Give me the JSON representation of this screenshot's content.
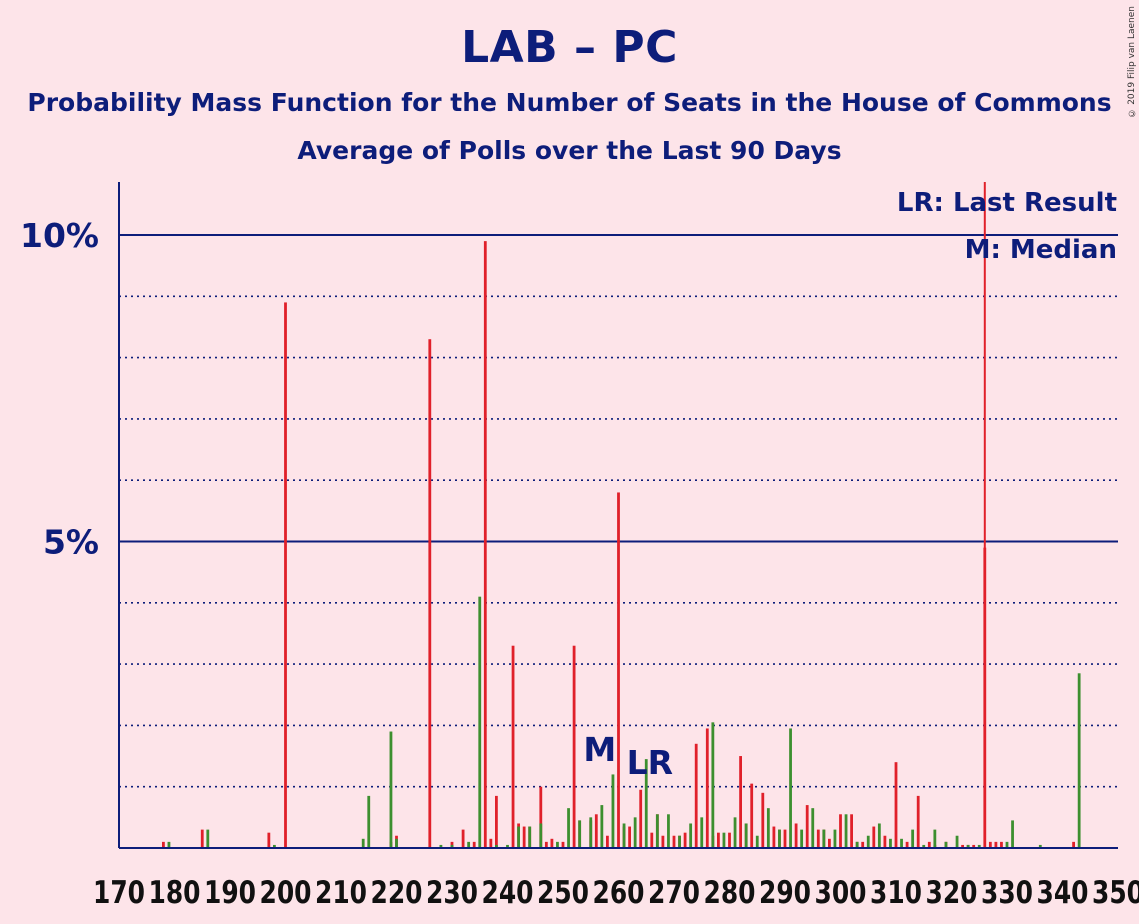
{
  "title": "LAB – PC",
  "subtitle": "Probability Mass Function for the Number of Seats in the House of Commons",
  "subtitle2": "Average of Polls over the Last 90 Days",
  "copyright": "© 2019 Filip van Laenen",
  "colors": {
    "background": "#fde4e9",
    "text": "#0d1d7a",
    "lab": "#e0202a",
    "pc": "#3d8f2f",
    "grid": "#0d1d7a"
  },
  "chart_data": {
    "type": "bar",
    "xlim": [
      170,
      350
    ],
    "ylim": [
      0,
      10.8
    ],
    "x_ticks": [
      170,
      180,
      190,
      200,
      210,
      220,
      230,
      240,
      250,
      260,
      270,
      280,
      290,
      300,
      310,
      320,
      330,
      340,
      350
    ],
    "y_ticks": [
      {
        "value": 5,
        "label": "5%"
      },
      {
        "value": 10,
        "label": "10%"
      }
    ],
    "grid": "dotted every 1%, solid at 5% and 10%",
    "median": {
      "seat": 257,
      "label": "M"
    },
    "last_result": {
      "seat": 266,
      "label": "LR"
    },
    "vline": {
      "seat": 326
    },
    "legend": [
      "LR: Last Result",
      "M: Median"
    ],
    "legend_position": "top-right",
    "series": [
      {
        "color": "#e0202a",
        "values": [
          [
            178,
            0.1
          ],
          [
            185,
            0.3
          ],
          [
            197,
            0.25
          ],
          [
            200,
            8.9
          ],
          [
            219,
            0.1
          ],
          [
            220,
            0.2
          ],
          [
            226,
            8.3
          ],
          [
            230,
            0.1
          ],
          [
            232,
            0.3
          ],
          [
            234,
            0.1
          ],
          [
            236,
            9.9
          ],
          [
            237,
            0.15
          ],
          [
            238,
            0.85
          ],
          [
            241,
            3.3
          ],
          [
            242,
            0.4
          ],
          [
            243,
            0.35
          ],
          [
            244,
            0.35
          ],
          [
            246,
            1.0
          ],
          [
            247,
            0.1
          ],
          [
            248,
            0.15
          ],
          [
            250,
            0.1
          ],
          [
            252,
            3.3
          ],
          [
            253,
            0.45
          ],
          [
            255,
            0.45
          ],
          [
            256,
            0.55
          ],
          [
            258,
            0.2
          ],
          [
            260,
            5.8
          ],
          [
            261,
            0.35
          ],
          [
            262,
            0.35
          ],
          [
            264,
            0.95
          ],
          [
            266,
            0.25
          ],
          [
            267,
            0.55
          ],
          [
            268,
            0.2
          ],
          [
            270,
            0.2
          ],
          [
            271,
            0.2
          ],
          [
            272,
            0.25
          ],
          [
            274,
            1.7
          ],
          [
            276,
            1.95
          ],
          [
            277,
            0.2
          ],
          [
            278,
            0.25
          ],
          [
            280,
            0.25
          ],
          [
            282,
            1.5
          ],
          [
            283,
            0.4
          ],
          [
            284,
            1.05
          ],
          [
            286,
            0.9
          ],
          [
            288,
            0.35
          ],
          [
            289,
            0.3
          ],
          [
            290,
            0.3
          ],
          [
            292,
            0.4
          ],
          [
            294,
            0.7
          ],
          [
            296,
            0.3
          ],
          [
            297,
            0.3
          ],
          [
            298,
            0.15
          ],
          [
            300,
            0.55
          ],
          [
            302,
            0.55
          ],
          [
            303,
            0.1
          ],
          [
            304,
            0.1
          ],
          [
            306,
            0.35
          ],
          [
            308,
            0.2
          ],
          [
            310,
            1.4
          ],
          [
            312,
            0.1
          ],
          [
            314,
            0.85
          ],
          [
            316,
            0.1
          ],
          [
            317,
            0.05
          ],
          [
            319,
            0.1
          ],
          [
            322,
            0.05
          ],
          [
            323,
            0.05
          ],
          [
            324,
            0.05
          ],
          [
            326,
            4.9
          ],
          [
            327,
            0.1
          ],
          [
            328,
            0.1
          ],
          [
            329,
            0.1
          ],
          [
            342,
            0.1
          ]
        ]
      },
      {
        "color": "#3d8f2f",
        "values": [
          [
            179,
            0.1
          ],
          [
            186,
            0.3
          ],
          [
            198,
            0.05
          ],
          [
            214,
            0.15
          ],
          [
            215,
            0.85
          ],
          [
            219,
            1.9
          ],
          [
            220,
            0.15
          ],
          [
            228,
            0.05
          ],
          [
            230,
            0.05
          ],
          [
            233,
            0.1
          ],
          [
            235,
            4.1
          ],
          [
            238,
            0.05
          ],
          [
            240,
            0.05
          ],
          [
            242,
            0.35
          ],
          [
            244,
            0.35
          ],
          [
            246,
            0.4
          ],
          [
            249,
            0.1
          ],
          [
            251,
            0.65
          ],
          [
            253,
            0.45
          ],
          [
            255,
            0.5
          ],
          [
            257,
            0.7
          ],
          [
            259,
            1.2
          ],
          [
            261,
            0.4
          ],
          [
            263,
            0.5
          ],
          [
            265,
            1.45
          ],
          [
            267,
            0.55
          ],
          [
            269,
            0.55
          ],
          [
            271,
            0.2
          ],
          [
            273,
            0.4
          ],
          [
            275,
            0.5
          ],
          [
            277,
            2.05
          ],
          [
            279,
            0.25
          ],
          [
            281,
            0.5
          ],
          [
            283,
            0.4
          ],
          [
            285,
            0.2
          ],
          [
            287,
            0.65
          ],
          [
            289,
            0.3
          ],
          [
            291,
            1.95
          ],
          [
            293,
            0.3
          ],
          [
            295,
            0.65
          ],
          [
            297,
            0.3
          ],
          [
            299,
            0.3
          ],
          [
            301,
            0.55
          ],
          [
            303,
            0.1
          ],
          [
            305,
            0.2
          ],
          [
            307,
            0.4
          ],
          [
            309,
            0.15
          ],
          [
            311,
            0.15
          ],
          [
            313,
            0.3
          ],
          [
            315,
            0.05
          ],
          [
            317,
            0.3
          ],
          [
            319,
            0.1
          ],
          [
            321,
            0.2
          ],
          [
            323,
            0.05
          ],
          [
            325,
            0.05
          ],
          [
            330,
            0.1
          ],
          [
            331,
            0.45
          ],
          [
            336,
            0.05
          ],
          [
            343,
            2.85
          ]
        ]
      }
    ]
  }
}
